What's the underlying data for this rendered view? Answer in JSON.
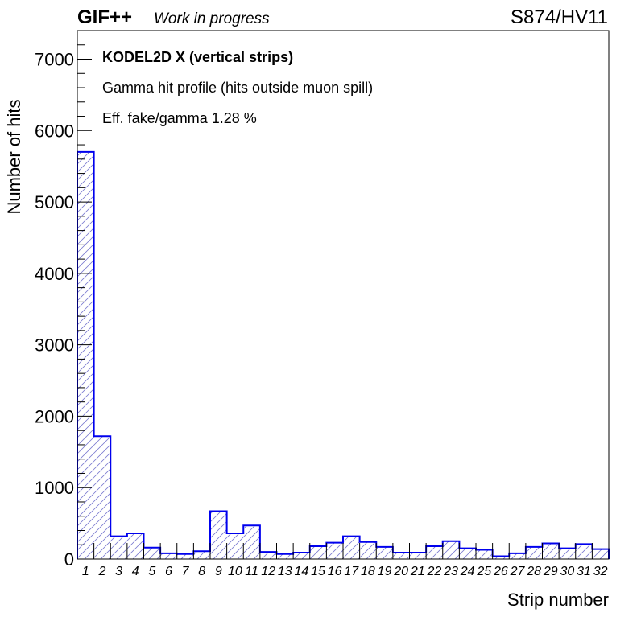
{
  "header": {
    "brand": "GIF++",
    "status": "Work in progress",
    "run_label": "S874/HV11"
  },
  "annotations": {
    "line1": "KODEL2D X (vertical strips)",
    "line2": "Gamma hit profile (hits outside muon spill)",
    "line3": "Eff. fake/gamma 1.28 %"
  },
  "colors": {
    "histogram_line": "#0000ee",
    "hatch": "#7b7bd0",
    "axis": "#000000"
  },
  "chart_data": {
    "type": "bar",
    "style": "histogram-step-hatched",
    "xlabel": "Strip number",
    "ylabel": "Number of hits",
    "categories": [
      "1",
      "2",
      "3",
      "4",
      "5",
      "6",
      "7",
      "8",
      "9",
      "10",
      "11",
      "12",
      "13",
      "14",
      "15",
      "16",
      "17",
      "18",
      "19",
      "20",
      "21",
      "22",
      "23",
      "24",
      "25",
      "26",
      "27",
      "28",
      "29",
      "30",
      "31",
      "32"
    ],
    "values": [
      5700,
      1720,
      320,
      360,
      160,
      80,
      70,
      110,
      670,
      360,
      470,
      100,
      70,
      90,
      180,
      230,
      320,
      240,
      170,
      90,
      90,
      180,
      250,
      150,
      130,
      40,
      80,
      170,
      220,
      150,
      210,
      140
    ],
    "ylim": [
      0,
      7400
    ],
    "yticks": [
      0,
      1000,
      2000,
      3000,
      4000,
      5000,
      6000,
      7000
    ],
    "grid": false
  }
}
